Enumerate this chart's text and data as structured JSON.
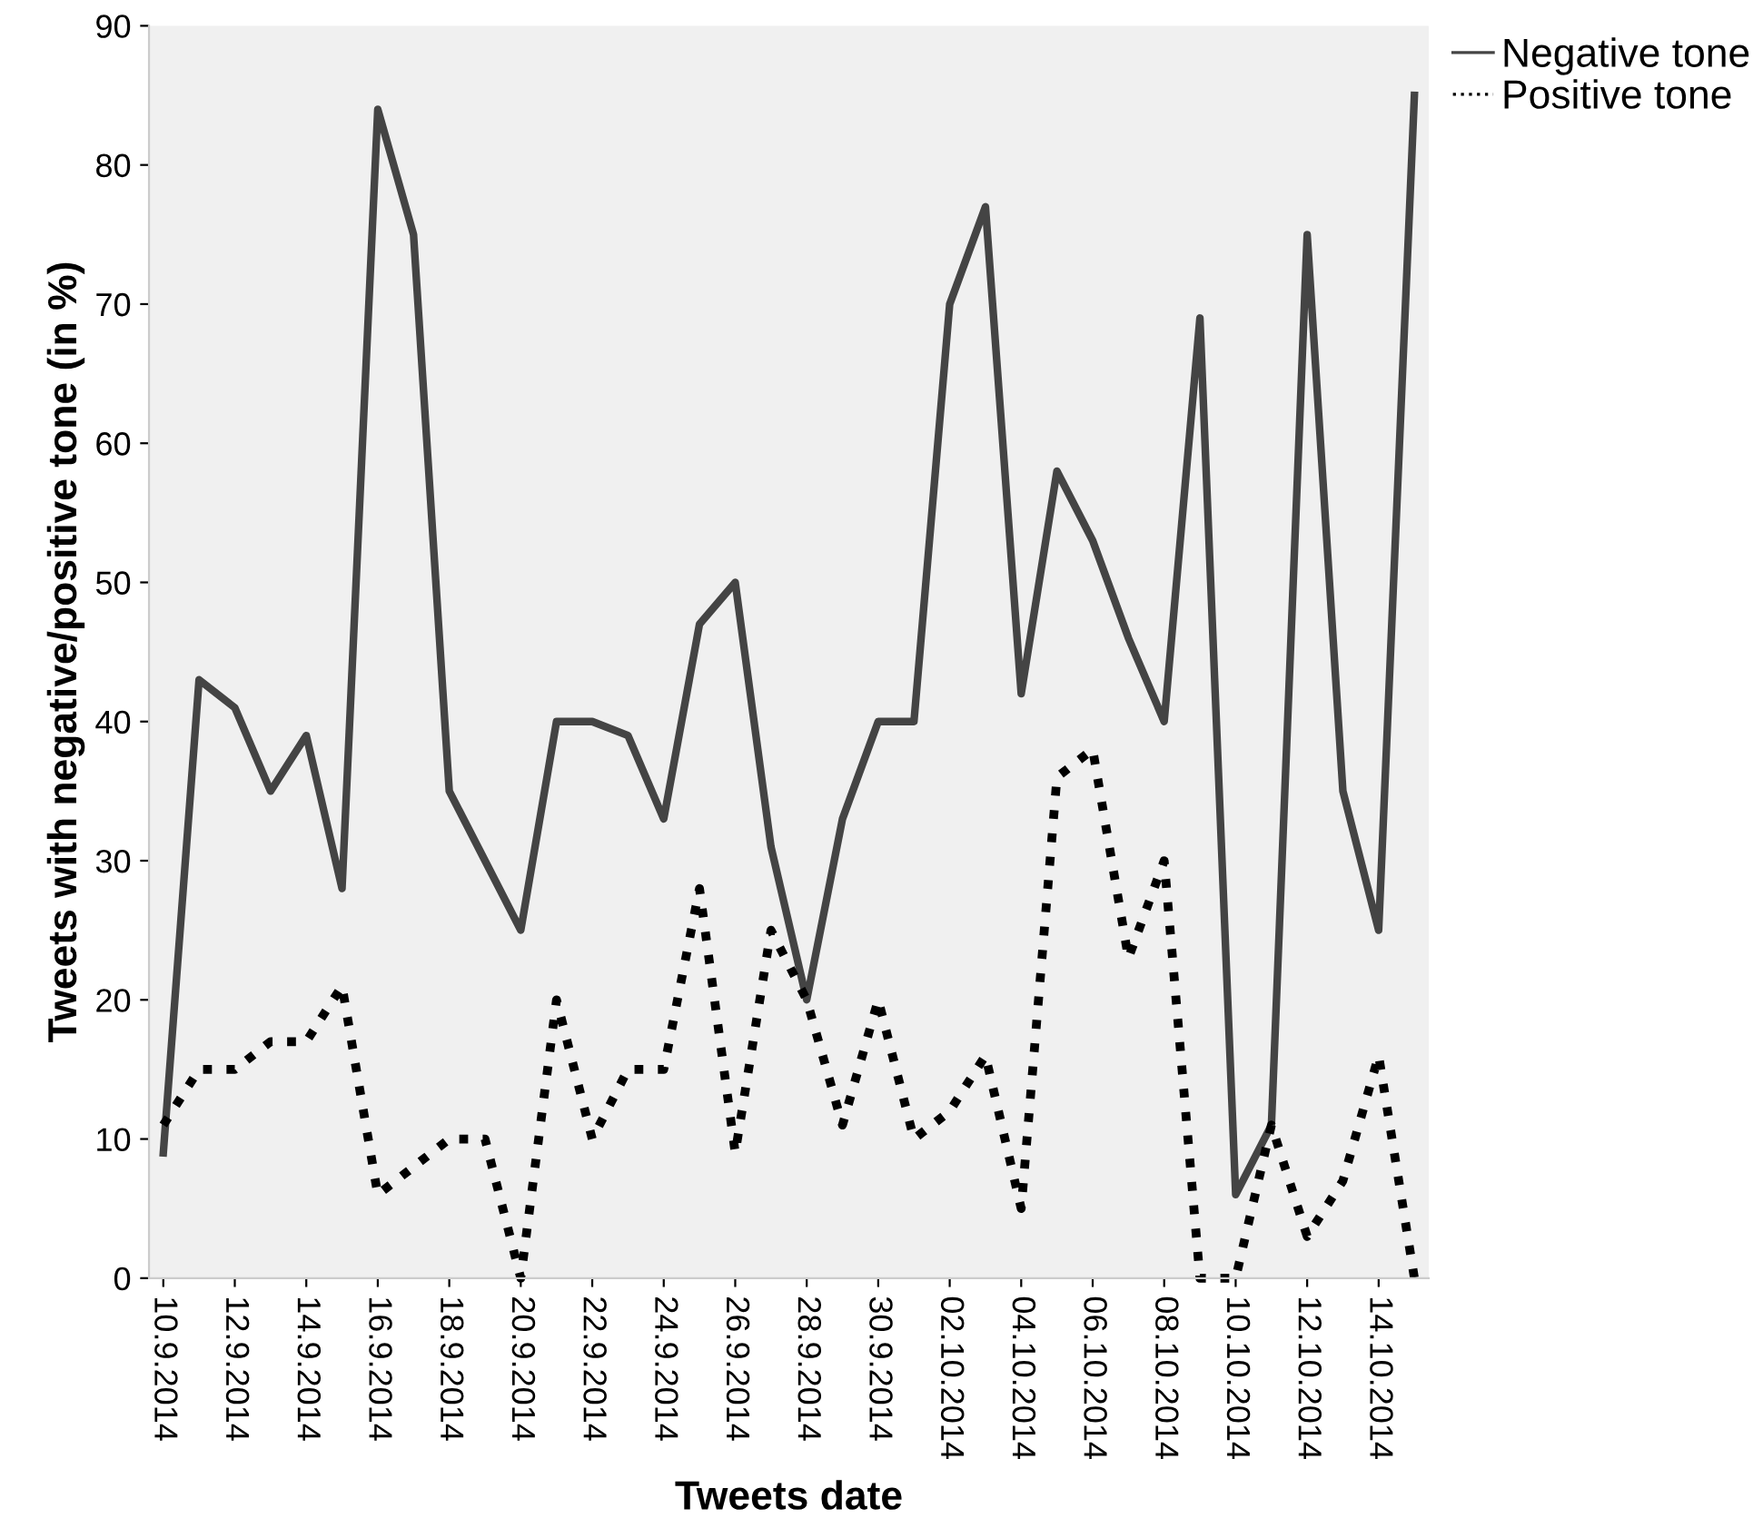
{
  "chart_data": {
    "type": "line",
    "xlabel": "Tweets date",
    "ylabel": "Tweets with negative/positive tone (in %)",
    "categories": [
      "10.9.2014",
      null,
      "12.9.2014",
      null,
      "14.9.2014",
      null,
      "16.9.2014",
      null,
      "18.9.2014",
      null,
      "20.9.2014",
      null,
      "22.9.2014",
      null,
      "24.9.2014",
      null,
      "26.9.2014",
      null,
      "28.9.2014",
      null,
      "30.9.2014",
      null,
      "02.10.2014",
      null,
      "04.10.2014",
      null,
      "06.10.2014",
      null,
      "08.10.2014",
      null,
      "10.10.2014",
      null,
      "12.10.2014",
      null,
      "14.10.2014",
      null
    ],
    "series": [
      {
        "name": "Negative tone",
        "color": "#444444",
        "line_style": "solid",
        "values": [
          9,
          43,
          41,
          35,
          39,
          28,
          84,
          75,
          35,
          30,
          25,
          40,
          40,
          39,
          33,
          47,
          50,
          31,
          20,
          33,
          40,
          40,
          70,
          77,
          42,
          58,
          53,
          46,
          40,
          69,
          6,
          11,
          75,
          35,
          25,
          85
        ]
      },
      {
        "name": "Positive tone",
        "color": "#000000",
        "line_style": "dotted",
        "values": [
          11,
          15,
          15,
          17,
          17,
          21,
          6,
          8,
          10,
          10,
          0,
          20,
          10,
          15,
          15,
          28,
          9,
          25,
          20,
          11,
          20,
          10,
          12,
          16,
          5,
          36,
          38,
          23,
          30,
          0,
          0,
          11,
          3,
          7,
          16,
          0
        ]
      }
    ],
    "ylim": [
      0,
      90
    ],
    "yticks": [
      0,
      10,
      20,
      30,
      40,
      50,
      60,
      70,
      80,
      90
    ],
    "grid": false,
    "legend": "top right",
    "marker": "none"
  }
}
